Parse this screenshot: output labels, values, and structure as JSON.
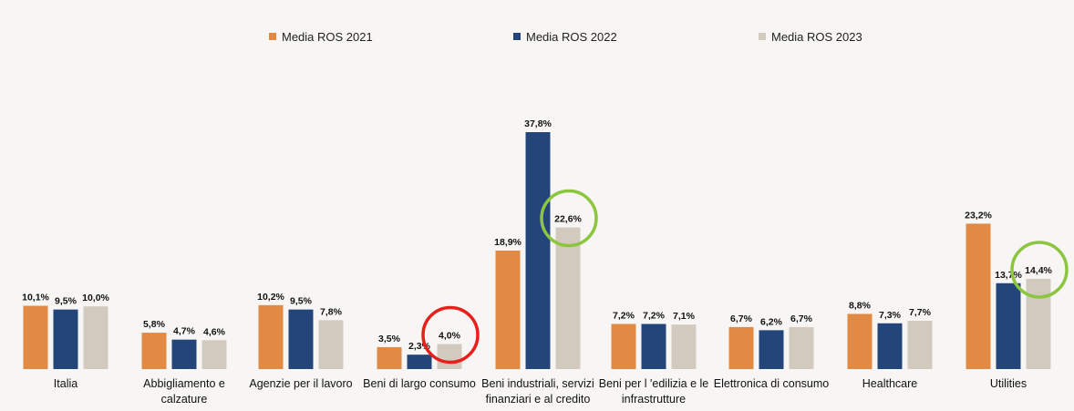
{
  "chart_data": {
    "type": "bar",
    "categories": [
      [
        "Italia"
      ],
      [
        "Abbigliamento e",
        "calzature"
      ],
      [
        "Agenzie per il lavoro"
      ],
      [
        "Beni di largo consumo"
      ],
      [
        "Beni industriali, servizi",
        "finanziari e al credito"
      ],
      [
        "Beni per l 'edilizia e le",
        "infrastrutture"
      ],
      [
        "Elettronica di consumo"
      ],
      [
        "Healthcare"
      ],
      [
        "Utilities"
      ]
    ],
    "series": [
      {
        "name": "Media ROS 2021",
        "color": "#e08a44",
        "values": [
          10.1,
          5.8,
          10.2,
          3.5,
          18.9,
          7.2,
          6.7,
          8.8,
          23.2
        ],
        "labels": [
          "10,1%",
          "5,8%",
          "10,2%",
          "3,5%",
          "18,9%",
          "7,2%",
          "6,7%",
          "8,8%",
          "23,2%"
        ]
      },
      {
        "name": "Media ROS 2022",
        "color": "#23457a",
        "values": [
          9.5,
          4.7,
          9.5,
          2.3,
          37.8,
          7.2,
          6.2,
          7.3,
          13.7
        ],
        "labels": [
          "9,5%",
          "4,7%",
          "9,5%",
          "2,3%",
          "37,8%",
          "7,2%",
          "6,2%",
          "7,3%",
          "13,7%"
        ]
      },
      {
        "name": "Media ROS 2023",
        "color": "#d2c9bf",
        "values": [
          10.0,
          4.6,
          7.8,
          4.0,
          22.6,
          7.1,
          6.7,
          7.7,
          14.4
        ],
        "labels": [
          "10,0%",
          "4,6%",
          "7,8%",
          "4,0%",
          "22,6%",
          "7,1%",
          "6,7%",
          "7,7%",
          "14,4%"
        ]
      }
    ],
    "annotations": [
      {
        "type": "circle",
        "color": "#e8201c",
        "category": 3,
        "series": 2
      },
      {
        "type": "circle",
        "color": "#8cc63f",
        "category": 4,
        "series": 2
      },
      {
        "type": "circle",
        "color": "#8cc63f",
        "category": 8,
        "series": 2
      }
    ],
    "title": "",
    "xlabel": "",
    "ylabel": "",
    "ylim": [
      0,
      40
    ],
    "grid": false,
    "legend_position": "top"
  }
}
